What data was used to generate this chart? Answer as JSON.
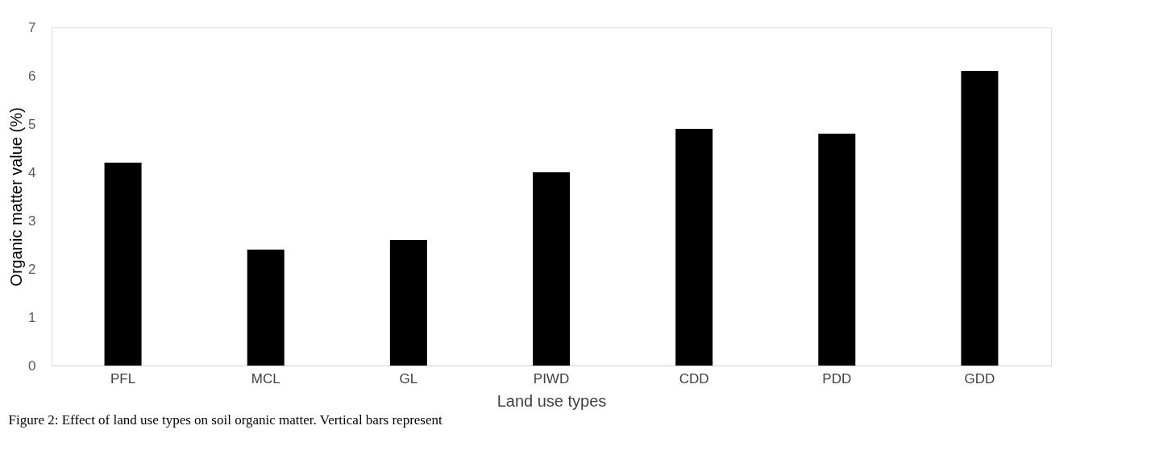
{
  "chart_data": {
    "type": "bar",
    "xlabel": "Land use types",
    "ylabel": "Organic matter value (%)",
    "categories": [
      "PFL",
      "MCL",
      "GL",
      "PIWD",
      "CDD",
      "PDD",
      "GDD"
    ],
    "values": [
      4.2,
      2.4,
      2.6,
      4.0,
      4.9,
      4.8,
      6.1
    ],
    "color": "#000000",
    "ylim": [
      0,
      7
    ],
    "yticks": [
      0,
      1,
      2,
      3,
      4,
      5,
      6,
      7
    ],
    "grid": false,
    "annotations": [
      "Figure 2: Effect of land use types on soil organic matter. Vertical bars represent"
    ]
  }
}
